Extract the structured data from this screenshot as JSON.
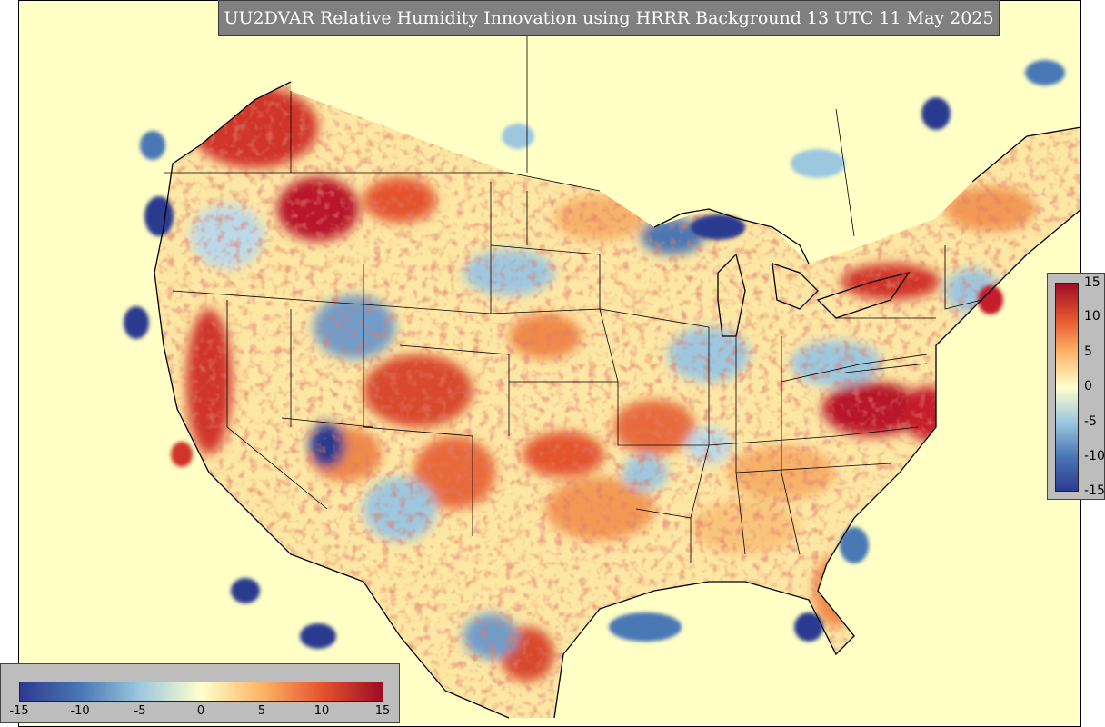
{
  "title": "UU2DVAR Relative Humidity Innovation using HRRR Background 13 UTC 11 May 2025",
  "colorbar": {
    "min": -15,
    "max": 15,
    "vertical_ticks": [
      "15",
      "10",
      "5",
      "0",
      "-5",
      "-10",
      "-15"
    ],
    "horizontal_ticks": [
      "-15",
      "-10",
      "-5",
      "0",
      "5",
      "10",
      "15"
    ],
    "colors": [
      "#2c3b8f",
      "#4a78b5",
      "#9cc7df",
      "#ffffcc",
      "#fdb365",
      "#e4552f",
      "#9e0c23"
    ]
  },
  "map": {
    "background_color": "#ffffc6",
    "border_color": "#000000"
  }
}
